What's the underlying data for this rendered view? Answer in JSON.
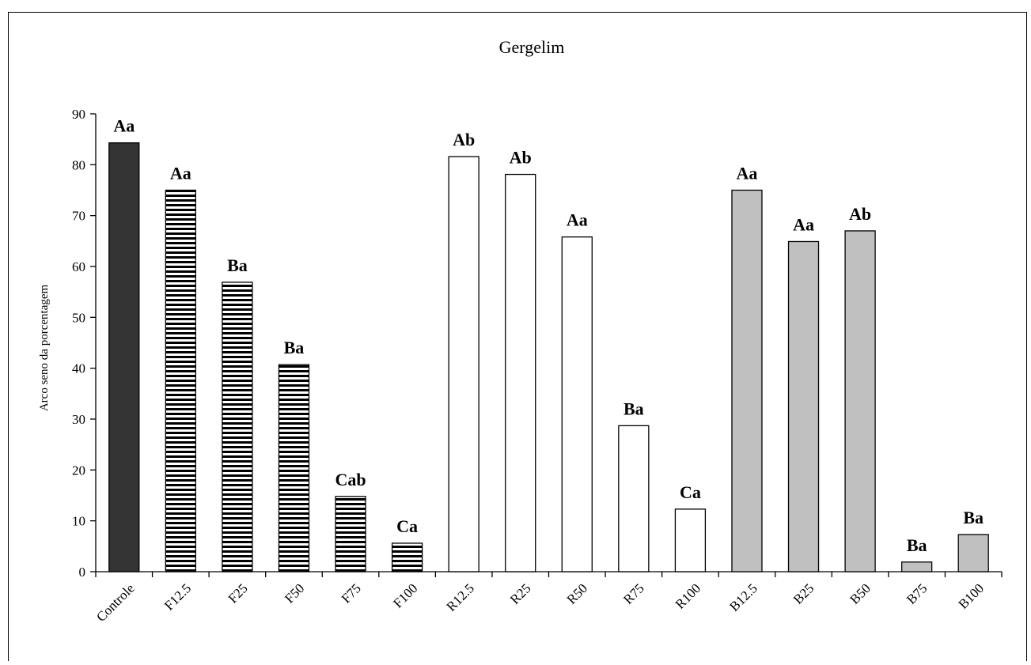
{
  "chart_data": {
    "type": "bar",
    "title": "Gergelim",
    "xlabel": "",
    "ylabel": "Arco seno da porcentagem",
    "ylim": [
      0,
      90
    ],
    "yticks": [
      0,
      10,
      20,
      30,
      40,
      50,
      60,
      70,
      80,
      90
    ],
    "grid": false,
    "legend": "none",
    "categories": [
      "Controle",
      "F12.5",
      "F25",
      "F50",
      "F75",
      "F100",
      "R12.5",
      "R25",
      "R50",
      "R75",
      "R100",
      "B12.5",
      "B25",
      "B50",
      "B75",
      "B100"
    ],
    "values": [
      84.3,
      75.0,
      56.9,
      40.7,
      14.8,
      5.6,
      81.6,
      78.1,
      65.8,
      28.7,
      12.3,
      75.0,
      64.9,
      67.0,
      1.9,
      7.3
    ],
    "labels": [
      "Aa",
      "Aa",
      "Ba",
      "Ba",
      "Cab",
      "Ca",
      "Ab",
      "Ab",
      "Aa",
      "Ba",
      "Ca",
      "Aa",
      "Aa",
      "Ab",
      "Ba",
      "Ba"
    ],
    "fills": [
      "dark",
      "stripe",
      "stripe",
      "stripe",
      "stripe",
      "stripe",
      "white",
      "white",
      "white",
      "white",
      "white",
      "gray",
      "gray",
      "gray",
      "gray",
      "gray"
    ],
    "colors": {
      "dark": "#333333",
      "stripe": "#000000",
      "white": "#ffffff",
      "gray": "#c0c0c0"
    }
  }
}
